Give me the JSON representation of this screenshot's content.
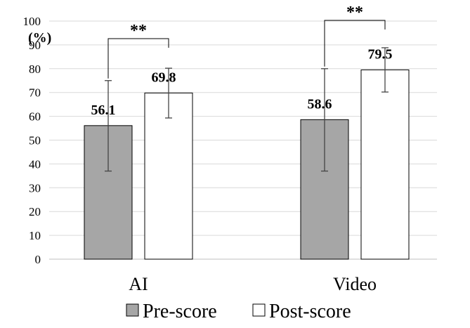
{
  "chart_data": {
    "type": "bar",
    "categories": [
      "AI",
      "Video"
    ],
    "series": [
      {
        "name": "Pre-score",
        "values": [
          56.1,
          58.6
        ],
        "err_low": [
          37,
          37
        ],
        "err_high": [
          75,
          80
        ],
        "color": "#a6a6a6"
      },
      {
        "name": "Post-score",
        "values": [
          69.8,
          79.5
        ],
        "err_low": [
          59.3,
          70.2
        ],
        "err_high": [
          80.2,
          88.8
        ],
        "color": "#ffffff"
      }
    ],
    "data_labels": [
      "56.1",
      "69.8",
      "58.6",
      "79.5"
    ],
    "ylim": [
      0,
      100
    ],
    "ytick_step": 10,
    "yunit": "(%)",
    "significance": [
      "**",
      "**"
    ],
    "grid": true,
    "legend_position": "bottom"
  }
}
